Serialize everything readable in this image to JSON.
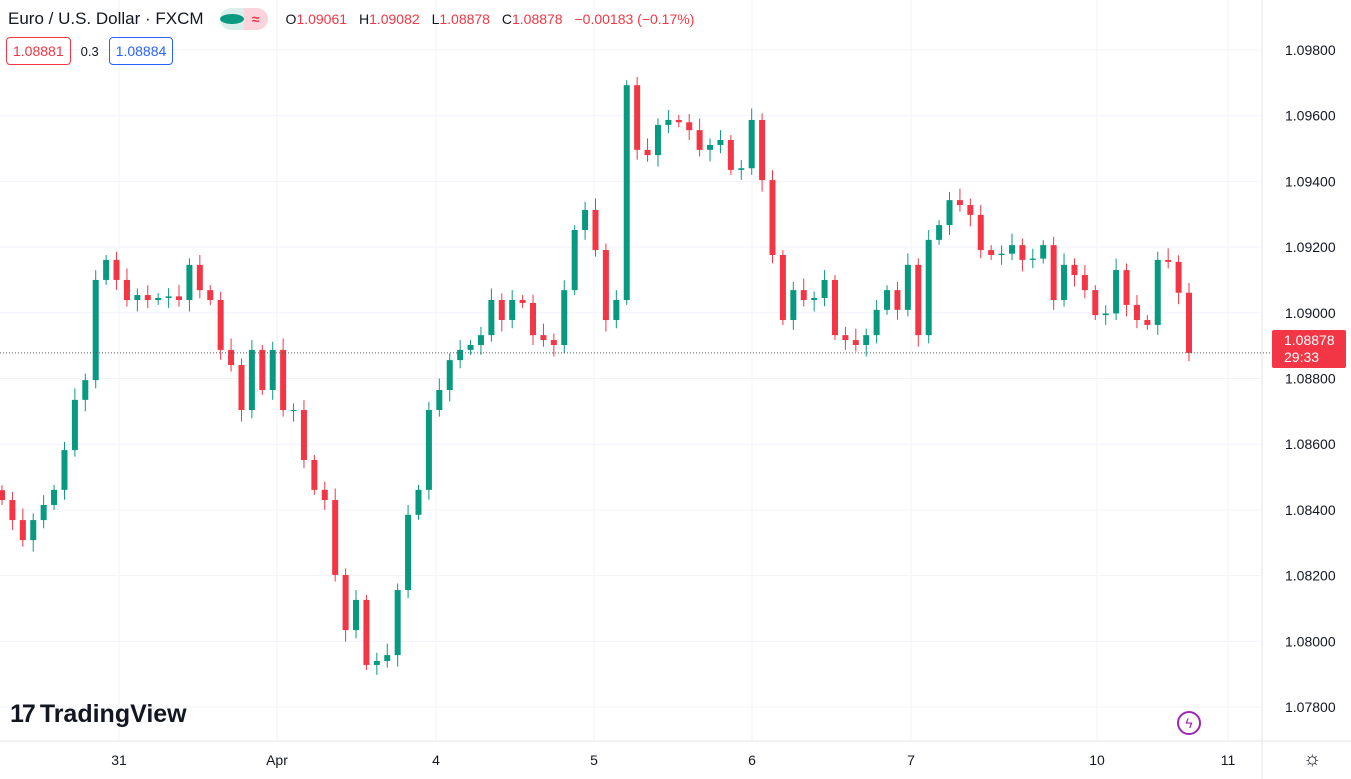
{
  "header": {
    "symbol": "Euro / U.S. Dollar · FXCM",
    "ohlc": {
      "o_label": "O",
      "o": "1.09061",
      "h_label": "H",
      "h": "1.09082",
      "l_label": "L",
      "l": "1.08878",
      "c_label": "C",
      "c": "1.08878",
      "change": "−0.00183 (−0.17%)"
    }
  },
  "trade": {
    "sell": "1.08881",
    "spread": "0.3",
    "buy": "1.08884"
  },
  "last_price": {
    "price": "1.08878",
    "countdown": "29:33"
  },
  "logo": "TradingView",
  "colors": {
    "up": "#089981",
    "down": "#f23645"
  },
  "chart_data": {
    "type": "candlestick",
    "title": "Euro / U.S. Dollar · FXCM",
    "interval": "1h",
    "ylim": [
      1.078,
      1.098
    ],
    "y_ticks": [
      "1.09800",
      "1.09600",
      "1.09400",
      "1.09200",
      "1.09000",
      "1.08800",
      "1.08600",
      "1.08400",
      "1.08200",
      "1.08000",
      "1.07800"
    ],
    "x_ticks": [
      "31",
      "Apr",
      "4",
      "5",
      "6",
      "7",
      "10",
      "11"
    ],
    "first_open": 1.0846,
    "closes": [
      1.0843,
      1.08369,
      1.08308,
      1.08369,
      1.08415,
      1.08461,
      1.08582,
      1.08735,
      1.08795,
      1.091,
      1.09161,
      1.091,
      1.09039,
      1.09054,
      1.09039,
      1.09045,
      1.0905,
      1.09039,
      1.09146,
      1.09069,
      1.09039,
      1.08887,
      1.08841,
      1.08704,
      1.08887,
      1.08765,
      1.08887,
      1.08704,
      1.08704,
      1.08552,
      1.08461,
      1.0843,
      1.08202,
      1.08034,
      1.08126,
      1.07928,
      1.0794,
      1.07958,
      1.08156,
      1.08385,
      1.08461,
      1.08704,
      1.08765,
      1.08856,
      1.08887,
      1.08902,
      1.08932,
      1.09039,
      1.08978,
      1.09039,
      1.0903,
      1.08932,
      1.08917,
      1.08902,
      1.09069,
      1.09252,
      1.09313,
      1.09191,
      1.08978,
      1.09039,
      1.09693,
      1.09496,
      1.0948,
      1.09572,
      1.09587,
      1.0958,
      1.09556,
      1.09496,
      1.09511,
      1.09526,
      1.09435,
      1.0944,
      1.09587,
      1.09404,
      1.09176,
      1.08978,
      1.09069,
      1.09039,
      1.09045,
      1.091,
      1.08932,
      1.08917,
      1.08902,
      1.08932,
      1.09009,
      1.09069,
      1.09009,
      1.09146,
      1.08932,
      1.09222,
      1.09267,
      1.09343,
      1.09328,
      1.09298,
      1.09191,
      1.09176,
      1.0918,
      1.09206,
      1.09161,
      1.09165,
      1.09206,
      1.09039,
      1.09146,
      1.09115,
      1.09069,
      1.08993,
      1.08998,
      1.0913,
      1.09024,
      1.08978,
      1.08963,
      1.09161,
      1.09155,
      1.09061,
      1.08878
    ]
  }
}
